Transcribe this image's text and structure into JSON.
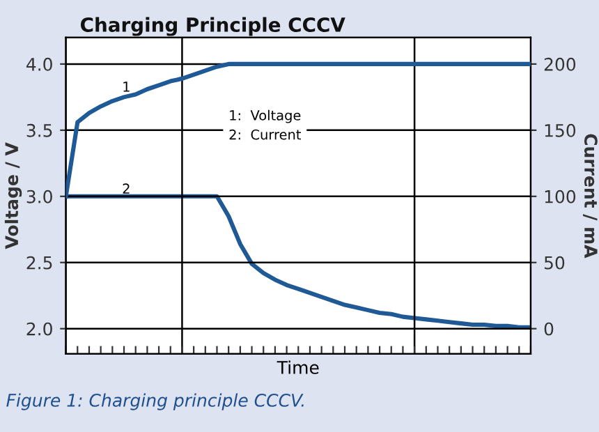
{
  "chart_data": {
    "type": "line",
    "title": "Charging Principle CCCV",
    "xlabel": "Time",
    "ylabel": "Voltage / V",
    "y2label": "Current / mA",
    "categories": [
      null,
      null,
      null,
      null,
      null,
      null,
      null,
      null,
      null,
      null,
      null,
      null,
      null,
      null,
      null,
      null,
      null,
      null,
      null,
      null,
      null,
      null,
      null,
      null,
      null,
      null,
      null,
      null,
      null,
      null,
      null,
      null,
      null,
      null,
      null,
      null,
      null,
      null,
      null,
      null,
      null
    ],
    "ylim": [
      1.81,
      4.2
    ],
    "yticks": [
      {
        "value": 2.0,
        "label": "2.0"
      },
      {
        "value": 2.5,
        "label": "2.5"
      },
      {
        "value": 3.0,
        "label": "3.0"
      },
      {
        "value": 3.5,
        "label": "3.5"
      },
      {
        "value": 4.0,
        "label": "4.0"
      }
    ],
    "y2lim": [
      -19,
      220
    ],
    "y2ticks": [
      0,
      50,
      100,
      150,
      200
    ],
    "grid": "y",
    "legend": false,
    "line_style": "solid",
    "marker": "none",
    "series": [
      {
        "color": "#1f5a96",
        "axis": "y",
        "values": [
          3.0,
          3.56,
          3.63,
          3.68,
          3.72,
          3.75,
          3.77,
          3.81,
          3.84,
          3.87,
          3.89,
          3.92,
          3.95,
          3.98,
          4.0,
          4.0,
          4.0,
          4.0,
          4.0,
          4.0,
          4.0,
          4.0,
          4.0,
          4.0,
          4.0,
          4.0,
          4.0,
          4.0,
          4.0,
          4.0,
          4.0,
          4.0,
          4.0,
          4.0,
          4.0,
          4.0,
          4.0,
          4.0,
          4.0,
          4.0,
          4.0
        ]
      },
      {
        "color": "#1f5a96",
        "axis": "y2",
        "values": [
          100,
          100,
          100,
          100,
          100,
          100,
          100,
          100,
          100,
          100,
          100,
          100,
          100,
          100,
          85,
          64,
          49,
          42,
          37,
          33,
          30,
          27,
          24,
          21,
          18,
          16,
          14,
          12,
          11,
          9,
          8,
          7,
          6,
          5,
          4,
          3,
          3,
          2,
          2,
          1,
          1
        ]
      }
    ],
    "annotations": [
      {
        "text": "1",
        "y": 3.77
      },
      {
        "text": "2",
        "y": 3.0
      },
      "1:  Voltage\n2:  Current",
      "Figure 1: Charging principle CCCV."
    ]
  }
}
